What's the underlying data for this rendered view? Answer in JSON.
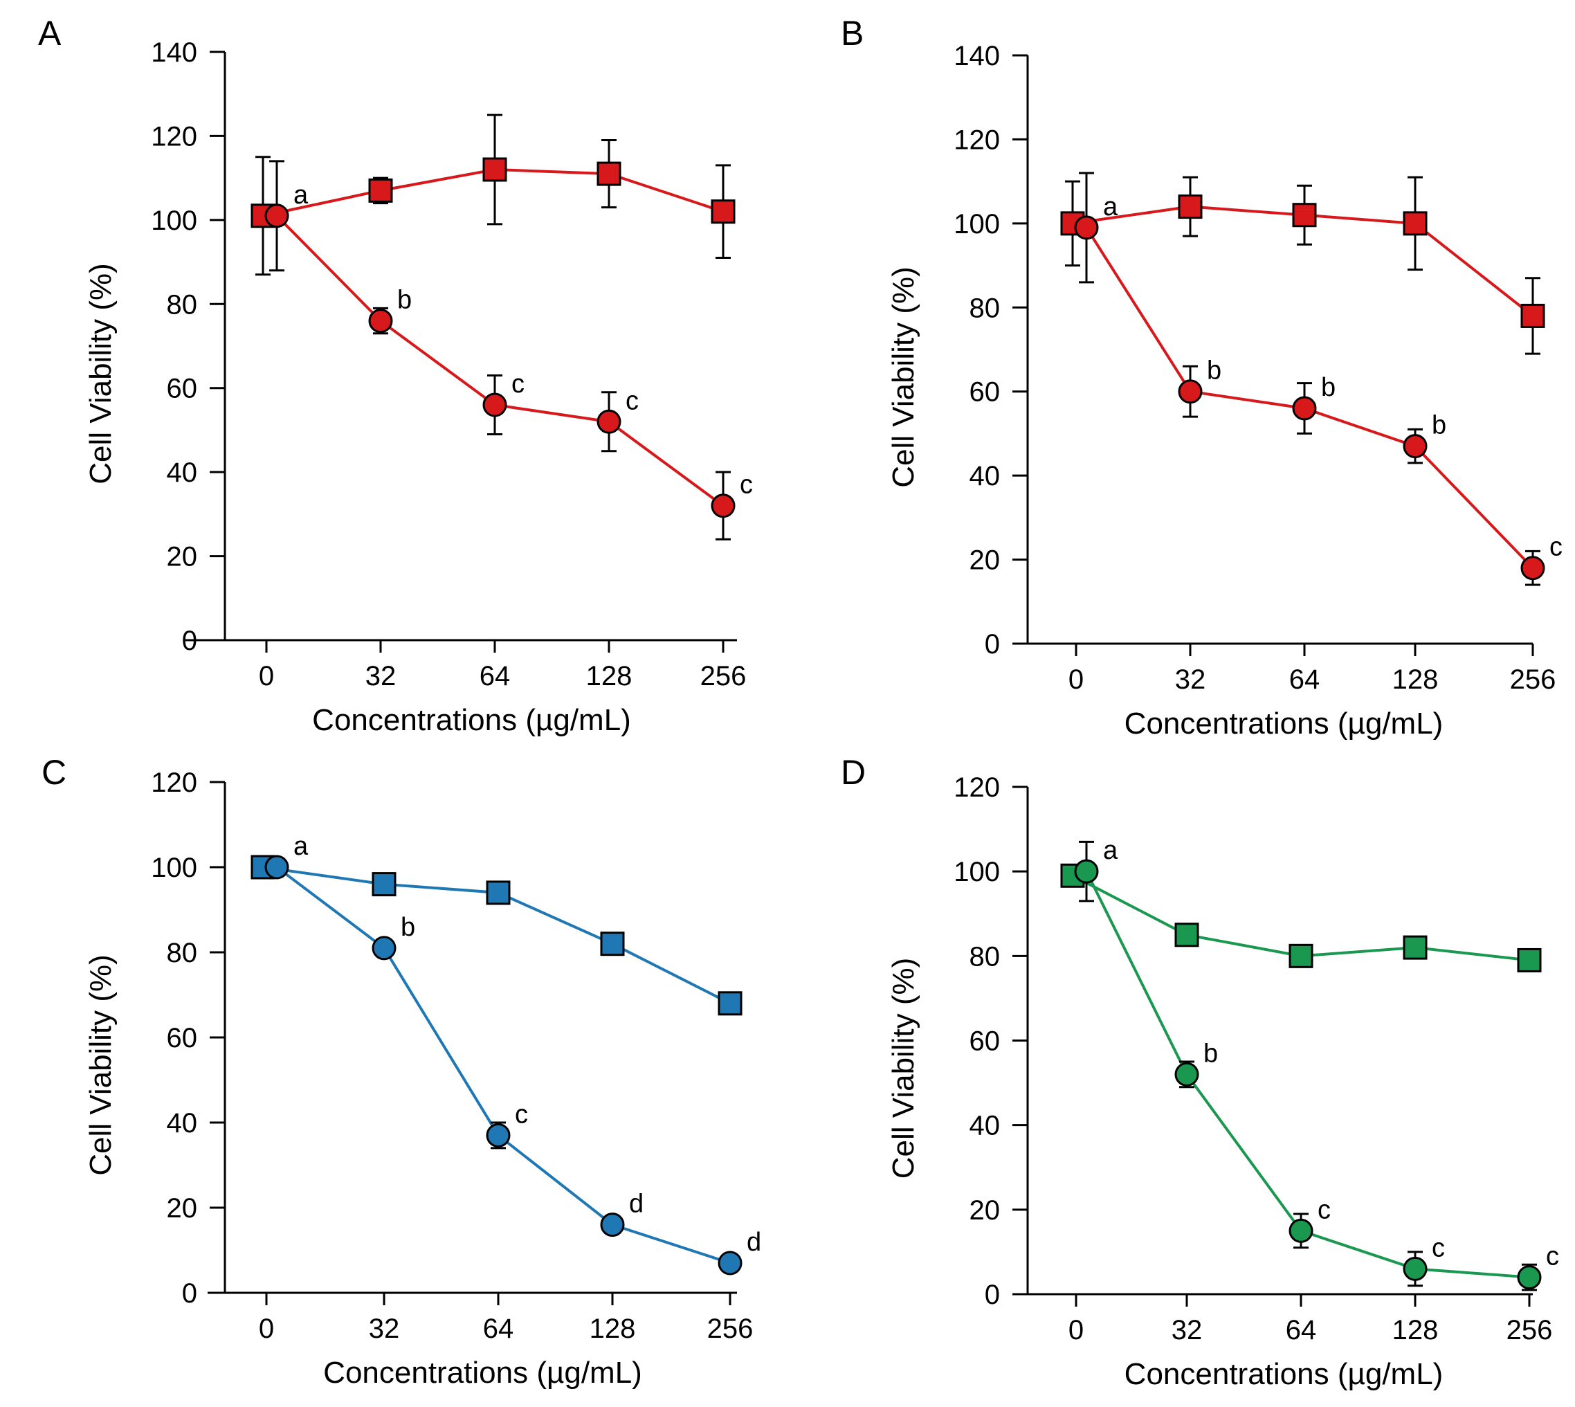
{
  "chart_data": [
    {
      "panel_label": "A",
      "type": "line",
      "title": "",
      "xlabel": "Concentrations (µg/mL)",
      "ylabel": "Cell Viability (%)",
      "categories": [
        "0",
        "32",
        "64",
        "128",
        "256"
      ],
      "ylim": [
        0,
        140
      ],
      "yticks": [
        "0",
        "20",
        "40",
        "60",
        "80",
        "100",
        "120",
        "140"
      ],
      "grid": false,
      "color": "#d7191c",
      "series": [
        {
          "name": "square",
          "marker": "square",
          "values": [
            101,
            107,
            112,
            111,
            102
          ],
          "errors": [
            14,
            3,
            13,
            8,
            11
          ],
          "labels": [
            "",
            "",
            "",
            "",
            ""
          ]
        },
        {
          "name": "circle",
          "marker": "circle",
          "values": [
            101,
            76,
            56,
            52,
            32
          ],
          "errors": [
            13,
            3,
            7,
            7,
            8
          ],
          "labels": [
            "a",
            "b",
            "c",
            "c",
            "c"
          ]
        }
      ]
    },
    {
      "panel_label": "B",
      "type": "line",
      "title": "",
      "xlabel": "Concentrations (µg/mL)",
      "ylabel": "Cell Viability (%)",
      "categories": [
        "0",
        "32",
        "64",
        "128",
        "256"
      ],
      "ylim": [
        0,
        140
      ],
      "yticks": [
        "0",
        "20",
        "40",
        "60",
        "80",
        "100",
        "120",
        "140"
      ],
      "grid": false,
      "color": "#d7191c",
      "series": [
        {
          "name": "square",
          "marker": "square",
          "values": [
            100,
            104,
            102,
            100,
            78
          ],
          "errors": [
            10,
            7,
            7,
            11,
            9
          ],
          "labels": [
            "",
            "",
            "",
            "",
            ""
          ]
        },
        {
          "name": "circle",
          "marker": "circle",
          "values": [
            99,
            60,
            56,
            47,
            18
          ],
          "errors": [
            13,
            6,
            6,
            4,
            4
          ],
          "labels": [
            "a",
            "b",
            "b",
            "b",
            "c"
          ]
        }
      ]
    },
    {
      "panel_label": "C",
      "type": "line",
      "title": "",
      "xlabel": "Concentrations (µg/mL)",
      "ylabel": "Cell Viability (%)",
      "categories": [
        "0",
        "32",
        "64",
        "128",
        "256"
      ],
      "ylim": [
        0,
        120
      ],
      "yticks": [
        "0",
        "20",
        "40",
        "60",
        "80",
        "100",
        "120"
      ],
      "grid": false,
      "color": "#1f78b4",
      "series": [
        {
          "name": "square",
          "marker": "square",
          "values": [
            100,
            96,
            94,
            82,
            68
          ],
          "errors": [
            0,
            0,
            0,
            0,
            0
          ],
          "labels": [
            "",
            "",
            "",
            "",
            ""
          ]
        },
        {
          "name": "circle",
          "marker": "circle",
          "values": [
            100,
            81,
            37,
            16,
            7
          ],
          "errors": [
            0,
            0,
            3,
            0,
            0
          ],
          "labels": [
            "a",
            "b",
            "c",
            "d",
            "d"
          ]
        }
      ]
    },
    {
      "panel_label": "D",
      "type": "line",
      "title": "",
      "xlabel": "Concentrations (µg/mL)",
      "ylabel": "Cell Viability (%)",
      "categories": [
        "0",
        "32",
        "64",
        "128",
        "256"
      ],
      "ylim": [
        0,
        120
      ],
      "yticks": [
        "0",
        "20",
        "40",
        "60",
        "80",
        "100",
        "120"
      ],
      "grid": false,
      "color": "#1a9850",
      "series": [
        {
          "name": "square",
          "marker": "square",
          "values": [
            99,
            85,
            80,
            82,
            79
          ],
          "errors": [
            0,
            0,
            0,
            0,
            0
          ],
          "labels": [
            "",
            "",
            "",
            "",
            ""
          ]
        },
        {
          "name": "circle",
          "marker": "circle",
          "values": [
            100,
            52,
            15,
            6,
            4
          ],
          "errors": [
            7,
            3,
            4,
            4,
            3
          ],
          "labels": [
            "a",
            "b",
            "c",
            "c",
            "c"
          ]
        }
      ]
    }
  ]
}
